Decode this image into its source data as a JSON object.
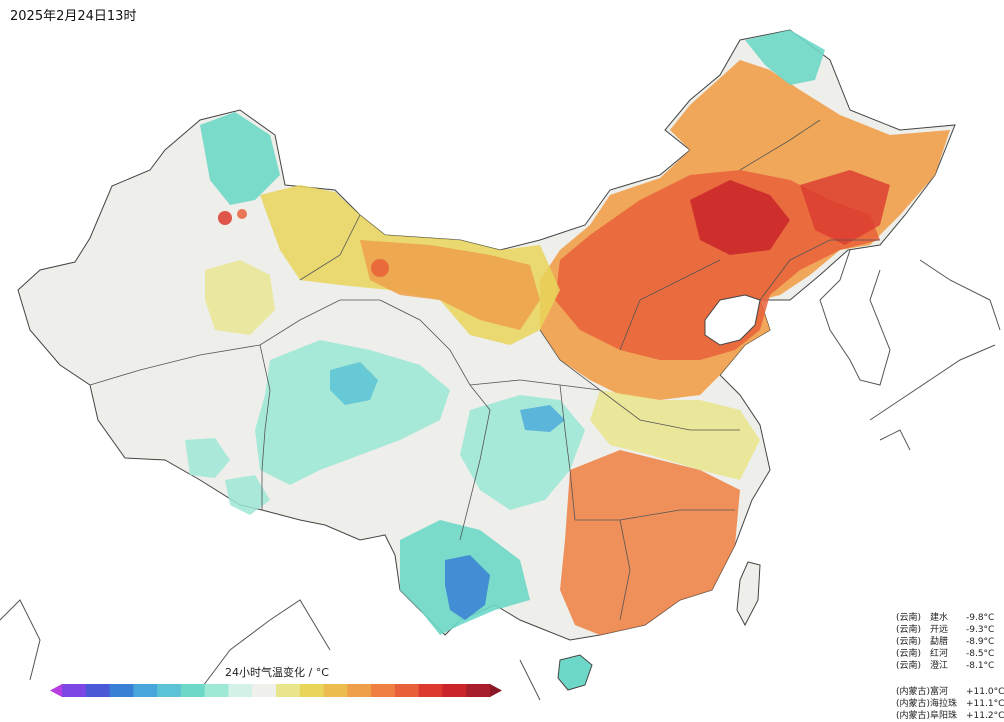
{
  "title": "2025年2月24日13时",
  "legend": {
    "title": "24小时气温变化 / °C",
    "colors": [
      "#b63ee0",
      "#7d47e6",
      "#4a5ad6",
      "#3a7fd6",
      "#49a6da",
      "#5cc3d6",
      "#6dd8c8",
      "#9ee8d6",
      "#d4f1e8",
      "#f0f0ec",
      "#e9e58d",
      "#e8d55a",
      "#ecbd4e",
      "#ef9f49",
      "#ef7f42",
      "#e8603a",
      "#dc3a2e",
      "#c9252a",
      "#a81e2a",
      "#8a1726"
    ]
  },
  "stations": {
    "drop": [
      {
        "prov": "(云南)",
        "name": "建水",
        "val": "-9.8°C"
      },
      {
        "prov": "(云南)",
        "name": "开远",
        "val": "-9.3°C"
      },
      {
        "prov": "(云南)",
        "name": "勐腊",
        "val": "-8.9°C"
      },
      {
        "prov": "(云南)",
        "name": "红河",
        "val": "-8.5°C"
      },
      {
        "prov": "(云南)",
        "name": "澄江",
        "val": "-8.1°C"
      }
    ],
    "rise": [
      {
        "prov": "(内蒙古)",
        "name": "富河",
        "val": "+11.0°C"
      },
      {
        "prov": "(内蒙古)",
        "name": "海拉珠",
        "val": "+11.1°C"
      },
      {
        "prov": "(内蒙古)",
        "name": "阜阳珠",
        "val": "+11.2°C"
      }
    ]
  }
}
